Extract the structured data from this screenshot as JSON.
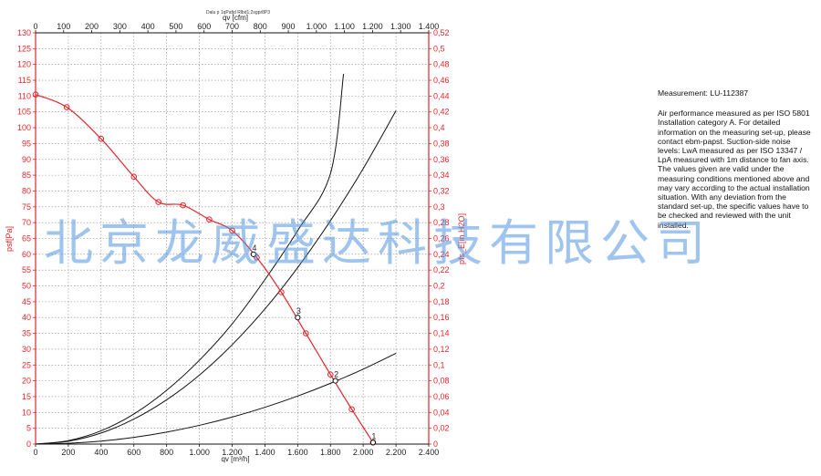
{
  "header": {
    "tiny_title": "Dalu p 1qPafjd Rlbd1;2sgpr8P3"
  },
  "notes": {
    "measurement": "Measurement: LU-112387",
    "body": "Air performance measured as per ISO 5801 Installation category A. For detailed information on the measuring set-up, please contact ebm-papst. Suction-side noise levels: LwA measured as per ISO 13347 / LpA measured with 1m distance to fan axis. The values given are valid under the measuring conditions mentioned above and may vary according to the actual installation situation. With any deviation from the standard set-up, the specific values have to be checked and reviewed with the unit installed."
  },
  "watermark": "北京龙威盛达科技有限公司",
  "colors": {
    "fan_curve": "#e3262b",
    "system_curves": "#111111",
    "grid": "#8a8a8a"
  },
  "chart_data": {
    "type": "line",
    "x_bottom": {
      "label": "qv [m³/h]",
      "range": [
        0,
        2400
      ],
      "ticks": [
        "0",
        "200",
        "400",
        "600",
        "800",
        "1.000",
        "1.200",
        "1.400",
        "1.600",
        "1.800",
        "2.000",
        "2.200",
        "2.400"
      ]
    },
    "x_top": {
      "label": "qv [cfm]",
      "range": [
        0,
        1400
      ],
      "ticks": [
        "0",
        "100",
        "200",
        "300",
        "400",
        "500",
        "600",
        "700",
        "800",
        "900",
        "1.000",
        "1.100",
        "1.200",
        "1.300",
        "1.400"
      ]
    },
    "y_left": {
      "label": "psf[Pa]",
      "range": [
        0,
        130
      ],
      "ticks": [
        "0",
        "5",
        "10",
        "15",
        "20",
        "25",
        "30",
        "35",
        "40",
        "45",
        "50",
        "55",
        "60",
        "65",
        "70",
        "75",
        "80",
        "85",
        "90",
        "95",
        "100",
        "105",
        "110",
        "115",
        "120",
        "125",
        "130"
      ]
    },
    "y_right": {
      "label": "pfs_E[in H2O]",
      "range": [
        0,
        0.52
      ],
      "ticks": [
        "0",
        "0,02",
        "0,04",
        "0,06",
        "0,08",
        "0,1",
        "0,12",
        "0,14",
        "0,16",
        "0,18",
        "0,2",
        "0,22",
        "0,24",
        "0,26",
        "0,28",
        "0,3",
        "0,32",
        "0,34",
        "0,36",
        "0,38",
        "0,4",
        "0,42",
        "0,44",
        "0,46",
        "0,48",
        "0,5",
        "0,52"
      ]
    },
    "grid": true,
    "fan_curve": {
      "name": "psf",
      "x": [
        0,
        190,
        400,
        600,
        750,
        900,
        1060,
        1200,
        1350,
        1500,
        1650,
        1800,
        1930,
        2060
      ],
      "y": [
        110.5,
        106.5,
        96.5,
        84.5,
        76.5,
        75.5,
        71,
        67.5,
        59,
        48,
        35,
        22,
        11,
        0.5
      ]
    },
    "system_curves": [
      {
        "x": [
          0,
          200,
          400,
          600,
          800,
          1000,
          1200,
          1400,
          1600,
          1800,
          1880
        ],
        "y": [
          0,
          1.1,
          4.2,
          9.5,
          17,
          26.5,
          38,
          52,
          67.5,
          85.5,
          117
        ]
      },
      {
        "x": [
          0,
          200,
          400,
          600,
          800,
          1000,
          1200,
          1400,
          1600,
          1800,
          2000,
          2200
        ],
        "y": [
          0,
          0.9,
          3.5,
          7.9,
          14,
          21.8,
          31.4,
          42.7,
          55.8,
          70.6,
          87.1,
          105.4
        ]
      },
      {
        "x": [
          0,
          200,
          400,
          600,
          800,
          1000,
          1200,
          1400,
          1600,
          1800,
          2000,
          2200
        ],
        "y": [
          0,
          0.24,
          0.95,
          2.13,
          3.79,
          5.93,
          8.54,
          11.62,
          15.18,
          19.21,
          23.7,
          28.7
        ]
      }
    ],
    "operating_points": [
      {
        "label": "1",
        "x": 2060,
        "y": 0.5
      },
      {
        "label": "2",
        "x": 1830,
        "y": 20
      },
      {
        "label": "3",
        "x": 1600,
        "y": 40
      },
      {
        "label": "4",
        "x": 1330,
        "y": 60
      }
    ]
  }
}
